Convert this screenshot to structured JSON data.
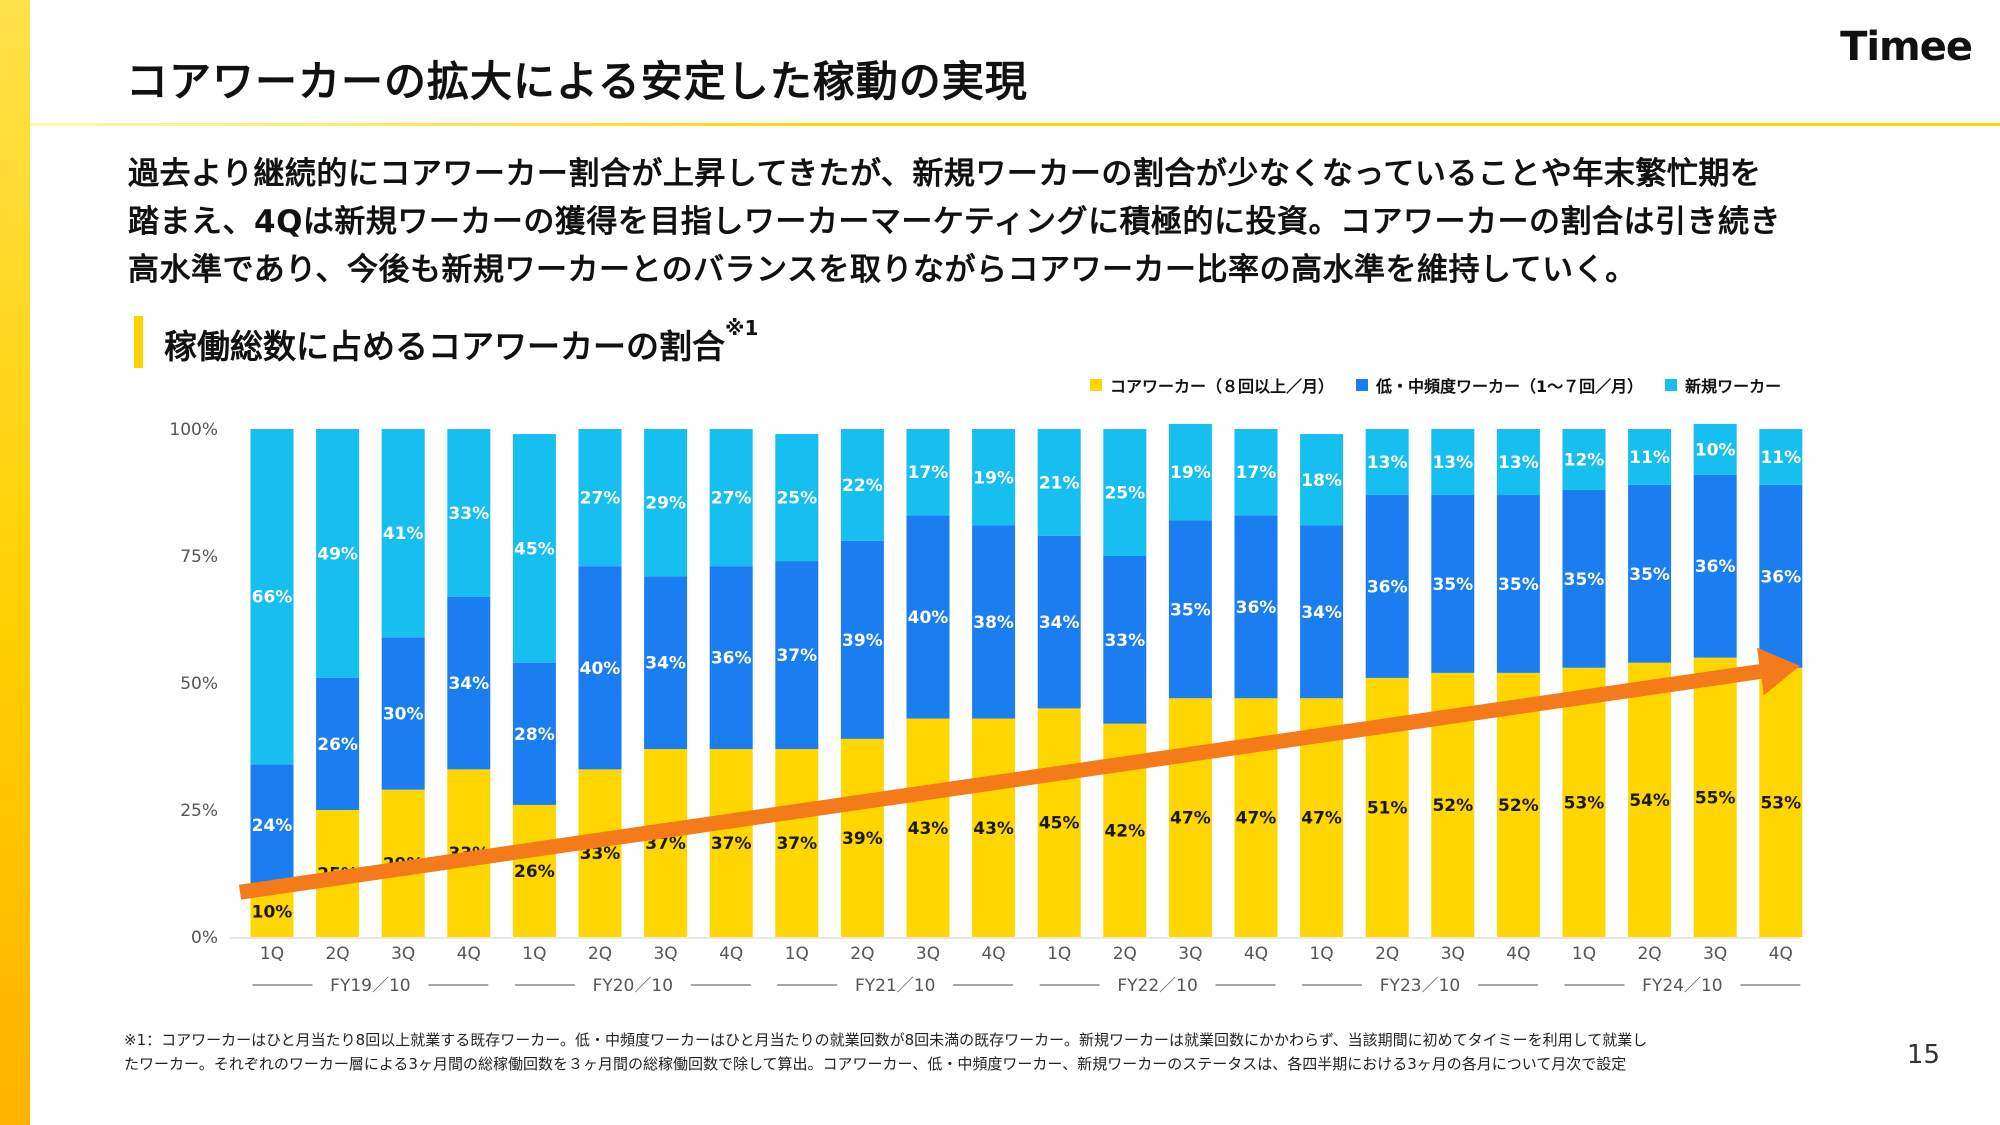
{
  "header": {
    "title": "コアワーカーの拡大による安定した稼動の実現",
    "brand": "Timee"
  },
  "description": [
    "過去より継続的にコアワーカー割合が上昇してきたが、新規ワーカーの割合が少なくなっていることや年末繁忙期を",
    "踏まえ、4Qは新規ワーカーの獲得を目指しワーカーマーケティングに積極的に投資。コアワーカーの割合は引き続き",
    "高水準であり、今後も新規ワーカーとのバランスを取りながらコアワーカー比率の高水準を維持していく。"
  ],
  "section": {
    "title": "稼働総数に占めるコアワーカーの割合",
    "note_mark": "※1"
  },
  "legend": [
    {
      "label": "コアワーカー（８回以上／月）",
      "color": "#ffd600"
    },
    {
      "label": "低・中頻度ワーカー（1〜７回／月）",
      "color": "#1a7ef0"
    },
    {
      "label": "新規ワーカー",
      "color": "#16bff0"
    }
  ],
  "chart_data": {
    "type": "bar",
    "stacked": true,
    "categories": [
      "1Q",
      "2Q",
      "3Q",
      "4Q",
      "1Q",
      "2Q",
      "3Q",
      "4Q",
      "1Q",
      "2Q",
      "3Q",
      "4Q",
      "1Q",
      "2Q",
      "3Q",
      "4Q",
      "1Q",
      "2Q",
      "3Q",
      "4Q",
      "1Q",
      "2Q",
      "3Q",
      "4Q"
    ],
    "groups": [
      {
        "label": "FY19／10",
        "start": 0,
        "end": 3
      },
      {
        "label": "FY20／10",
        "start": 4,
        "end": 7
      },
      {
        "label": "FY21／10",
        "start": 8,
        "end": 11
      },
      {
        "label": "FY22／10",
        "start": 12,
        "end": 15
      },
      {
        "label": "FY23／10",
        "start": 16,
        "end": 19
      },
      {
        "label": "FY24／10",
        "start": 20,
        "end": 23
      }
    ],
    "series": [
      {
        "name": "コアワーカー（８回以上／月）",
        "color": "#ffd600",
        "values": [
          10,
          25,
          29,
          33,
          26,
          33,
          37,
          37,
          37,
          39,
          43,
          43,
          45,
          42,
          47,
          47,
          47,
          51,
          52,
          52,
          53,
          54,
          55,
          53
        ]
      },
      {
        "name": "低・中頻度ワーカー（1〜７回／月）",
        "color": "#1a7ef0",
        "values": [
          24,
          26,
          30,
          34,
          28,
          40,
          34,
          36,
          37,
          39,
          40,
          38,
          34,
          33,
          35,
          36,
          34,
          36,
          35,
          35,
          35,
          35,
          36,
          36
        ]
      },
      {
        "name": "新規ワーカー",
        "color": "#16bff0",
        "values": [
          66,
          49,
          41,
          33,
          45,
          27,
          29,
          27,
          25,
          22,
          17,
          19,
          21,
          25,
          19,
          17,
          18,
          13,
          13,
          13,
          12,
          11,
          10,
          11
        ]
      }
    ],
    "ylim": [
      0,
      100
    ],
    "yticks": [
      "0%",
      "25%",
      "50%",
      "75%",
      "100%"
    ],
    "trend_arrow": {
      "from": 10,
      "to": 53,
      "color": "#f57a1a"
    }
  },
  "footnote": [
    "※1：コアワーカーはひと月当たり8回以上就業する既存ワーカー。低・中頻度ワーカーはひと月当たりの就業回数が8回未満の既存ワーカー。新規ワーカーは就業回数にかかわらず、当該期間に初めてタイミーを利用して就業し",
    "たワーカー。それぞれのワーカー層による3ヶ月間の総稼働回数を３ヶ月間の総稼働回数で除して算出。コアワーカー、低・中頻度ワーカー、新規ワーカーのステータスは、各四半期における3ヶ月の各月について月次で設定"
  ],
  "page_number": "15"
}
